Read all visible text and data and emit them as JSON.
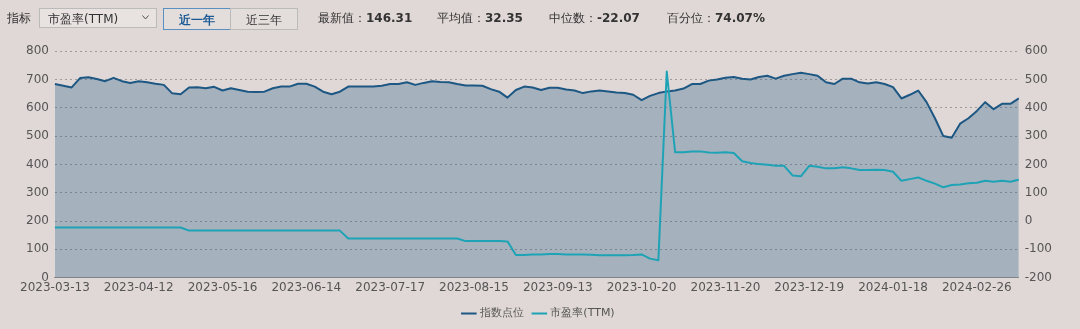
{
  "chart_data": {
    "type": "area",
    "categories": [
      "2023-03-13",
      null,
      null,
      null,
      null,
      null,
      null,
      null,
      null,
      null,
      "2023-04-12",
      null,
      null,
      null,
      null,
      null,
      null,
      null,
      null,
      null,
      "2023-05-16",
      null,
      null,
      null,
      null,
      null,
      null,
      null,
      null,
      null,
      "2023-06-14",
      null,
      null,
      null,
      null,
      null,
      null,
      null,
      null,
      null,
      "2023-07-17",
      null,
      null,
      null,
      null,
      null,
      null,
      null,
      null,
      null,
      "2023-08-15",
      null,
      null,
      null,
      null,
      null,
      null,
      null,
      null,
      null,
      "2023-09-13",
      null,
      null,
      null,
      null,
      null,
      null,
      null,
      null,
      null,
      "2023-10-20",
      null,
      null,
      null,
      null,
      null,
      null,
      null,
      null,
      null,
      "2023-11-20",
      null,
      null,
      null,
      null,
      null,
      null,
      null,
      null,
      null,
      "2023-12-19",
      null,
      null,
      null,
      null,
      null,
      null,
      null,
      null,
      null,
      "2024-01-18",
      null,
      null,
      null,
      null,
      null,
      null,
      null,
      null,
      null,
      "2024-02-26",
      null,
      null,
      null,
      null,
      null
    ],
    "series": [
      {
        "name": "指数点位",
        "color": "#1d5783",
        "values": [
          684,
          678,
          672,
          705,
          708,
          702,
          694,
          706,
          694,
          688,
          694,
          690,
          685,
          681,
          651,
          648,
          672,
          673,
          669,
          674,
          661,
          669,
          663,
          657,
          656,
          657,
          669,
          675,
          675,
          685,
          685,
          675,
          657,
          648,
          657,
          675,
          675,
          675,
          675,
          678,
          684,
          684,
          690,
          681,
          688,
          694,
          691,
          690,
          684,
          679,
          679,
          678,
          666,
          657,
          636,
          663,
          675,
          672,
          663,
          671,
          671,
          665,
          661,
          652,
          658,
          661,
          658,
          654,
          652,
          646,
          627,
          642,
          652,
          658,
          661,
          668,
          684,
          684,
          696,
          700,
          706,
          709,
          703,
          700,
          709,
          713,
          703,
          713,
          719,
          724,
          719,
          713,
          690,
          684,
          703,
          703,
          690,
          686,
          690,
          684,
          673,
          633,
          646,
          661,
          620,
          563,
          500,
          494,
          544,
          563,
          589,
          620,
          595,
          614,
          614,
          633
        ]
      },
      {
        "name": "市盈率(TTM)",
        "type": "line",
        "axis": "y2",
        "color": "#1ea3b6",
        "values": [
          -23,
          -23,
          -23,
          -23,
          -23,
          -23,
          -23,
          -23,
          -23,
          -23,
          -23,
          -23,
          -23,
          -23,
          -23,
          -23,
          -34,
          -34,
          -34,
          -34,
          -34,
          -34,
          -34,
          -34,
          -34,
          -34,
          -34,
          -34,
          -34,
          -34,
          -34,
          -34,
          -34,
          -34,
          -34,
          -62,
          -62,
          -62,
          -62,
          -62,
          -62,
          -62,
          -62,
          -62,
          -62,
          -62,
          -62,
          -62,
          -62,
          -71,
          -71,
          -71,
          -71,
          -71,
          -72,
          -120,
          -120,
          -118,
          -118,
          -117,
          -117,
          -118,
          -118,
          -118,
          -119,
          -121,
          -121,
          -121,
          -121,
          -120,
          -118,
          -133,
          -139,
          528,
          243,
          243,
          246,
          246,
          242,
          241,
          243,
          240,
          211,
          205,
          201,
          199,
          195,
          195,
          161,
          158,
          195,
          192,
          186,
          186,
          190,
          186,
          180,
          180,
          181,
          180,
          174,
          142,
          148,
          154,
          142,
          132,
          119,
          127,
          129,
          133,
          135,
          142,
          139,
          142,
          139,
          146
        ]
      }
    ],
    "ylim": [
      0,
      800
    ],
    "yticks": [
      0,
      100,
      200,
      300,
      400,
      500,
      600,
      700,
      800
    ],
    "y2lim": [
      -200,
      600
    ],
    "y2ticks": [
      -200,
      -100,
      0,
      100,
      200,
      300,
      400,
      500,
      600
    ],
    "grid": "y",
    "legend": "bottom",
    "marker": "none",
    "annotations": [
      "指标",
      "市盈率(TTM)",
      "近一年",
      "近三年",
      "最新值：146.31",
      "平均值：32.35",
      "中位数：-22.07",
      "百分位：74.07%"
    ]
  }
}
